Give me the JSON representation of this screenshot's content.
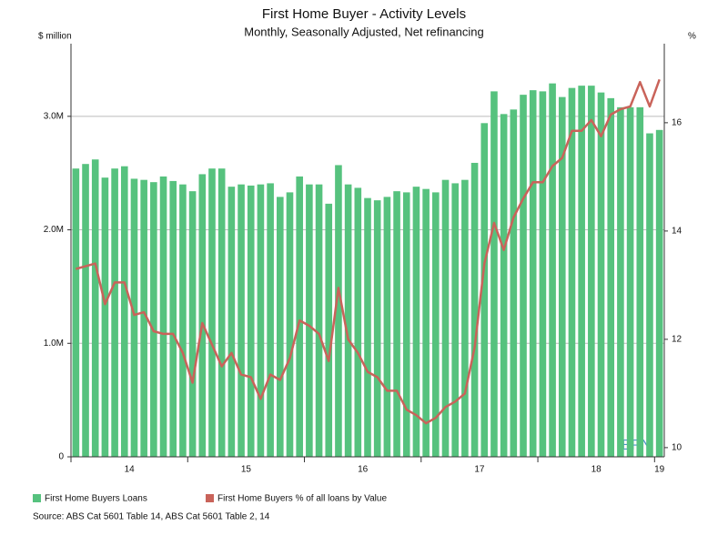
{
  "chart_data": {
    "type": "bar-line",
    "title": "First Home Buyer - Activity Levels",
    "subtitle": "Monthly, Seasonally Adjusted, Net refinancing",
    "y_label": "$ million",
    "y2_label": "%",
    "source": "Source: ABS Cat 5601 Table 14, ABS Cat 5601 Table 2, 14",
    "watermark": "BPN",
    "year_labels": [
      "14",
      "15",
      "16",
      "17",
      "18",
      "19"
    ],
    "categories": [
      null,
      null,
      null,
      null,
      null,
      null,
      null,
      null,
      null,
      null,
      null,
      null,
      null,
      null,
      null,
      null,
      null,
      null,
      null,
      null,
      null,
      null,
      null,
      null,
      null,
      null,
      null,
      null,
      null,
      null,
      null,
      null,
      null,
      null,
      null,
      null,
      null,
      null,
      null,
      null,
      null,
      null,
      null,
      null,
      null,
      null,
      null,
      null,
      null,
      null,
      null,
      null,
      null,
      null,
      null,
      null,
      null,
      null,
      null,
      null,
      null
    ],
    "ylim": [
      0,
      3.64
    ],
    "yticks": [
      0,
      {
        "value": 1,
        "label": "1.0M"
      },
      {
        "value": 2,
        "label": "2.0M"
      },
      {
        "value": 3,
        "label": "3.0M"
      }
    ],
    "y2lim": [
      9.83,
      17.46
    ],
    "y2ticks": [
      10,
      12,
      14,
      16
    ],
    "grid": true,
    "series": [
      {
        "name": "First Home Buyers Loans",
        "type": "bar",
        "color": "#56c27e",
        "values": [
          2.54,
          2.58,
          2.62,
          2.46,
          2.54,
          2.56,
          2.45,
          2.44,
          2.42,
          2.47,
          2.43,
          2.4,
          2.34,
          2.49,
          2.54,
          2.54,
          2.38,
          2.4,
          2.39,
          2.4,
          2.41,
          2.29,
          2.33,
          2.47,
          2.4,
          2.4,
          2.23,
          2.57,
          2.4,
          2.37,
          2.28,
          2.26,
          2.29,
          2.34,
          2.33,
          2.38,
          2.36,
          2.33,
          2.44,
          2.41,
          2.44,
          2.59,
          2.94,
          3.22,
          3.02,
          3.06,
          3.19,
          3.23,
          3.22,
          3.29,
          3.17,
          3.25,
          3.27,
          3.27,
          3.21,
          3.16,
          3.08,
          3.08,
          3.08,
          2.85,
          2.88
        ]
      },
      {
        "name": "First Home Buyers % of all loans by Value",
        "type": "line",
        "color": "#c9635a",
        "axis": "y2",
        "values": [
          13.3,
          13.35,
          13.4,
          12.65,
          13.05,
          13.05,
          12.45,
          12.5,
          12.15,
          12.1,
          12.1,
          11.75,
          11.2,
          12.3,
          11.9,
          11.5,
          11.75,
          11.35,
          11.3,
          10.9,
          11.35,
          11.25,
          11.65,
          12.35,
          12.25,
          12.1,
          11.6,
          12.95,
          12.0,
          11.75,
          11.4,
          11.3,
          11.05,
          11.05,
          10.7,
          10.6,
          10.45,
          10.55,
          10.75,
          10.85,
          11.0,
          11.85,
          13.4,
          14.15,
          13.65,
          14.25,
          14.6,
          14.9,
          14.9,
          15.2,
          15.35,
          15.85,
          15.85,
          16.05,
          15.75,
          16.15,
          16.25,
          16.3,
          16.75,
          16.3,
          16.8
        ]
      }
    ]
  }
}
